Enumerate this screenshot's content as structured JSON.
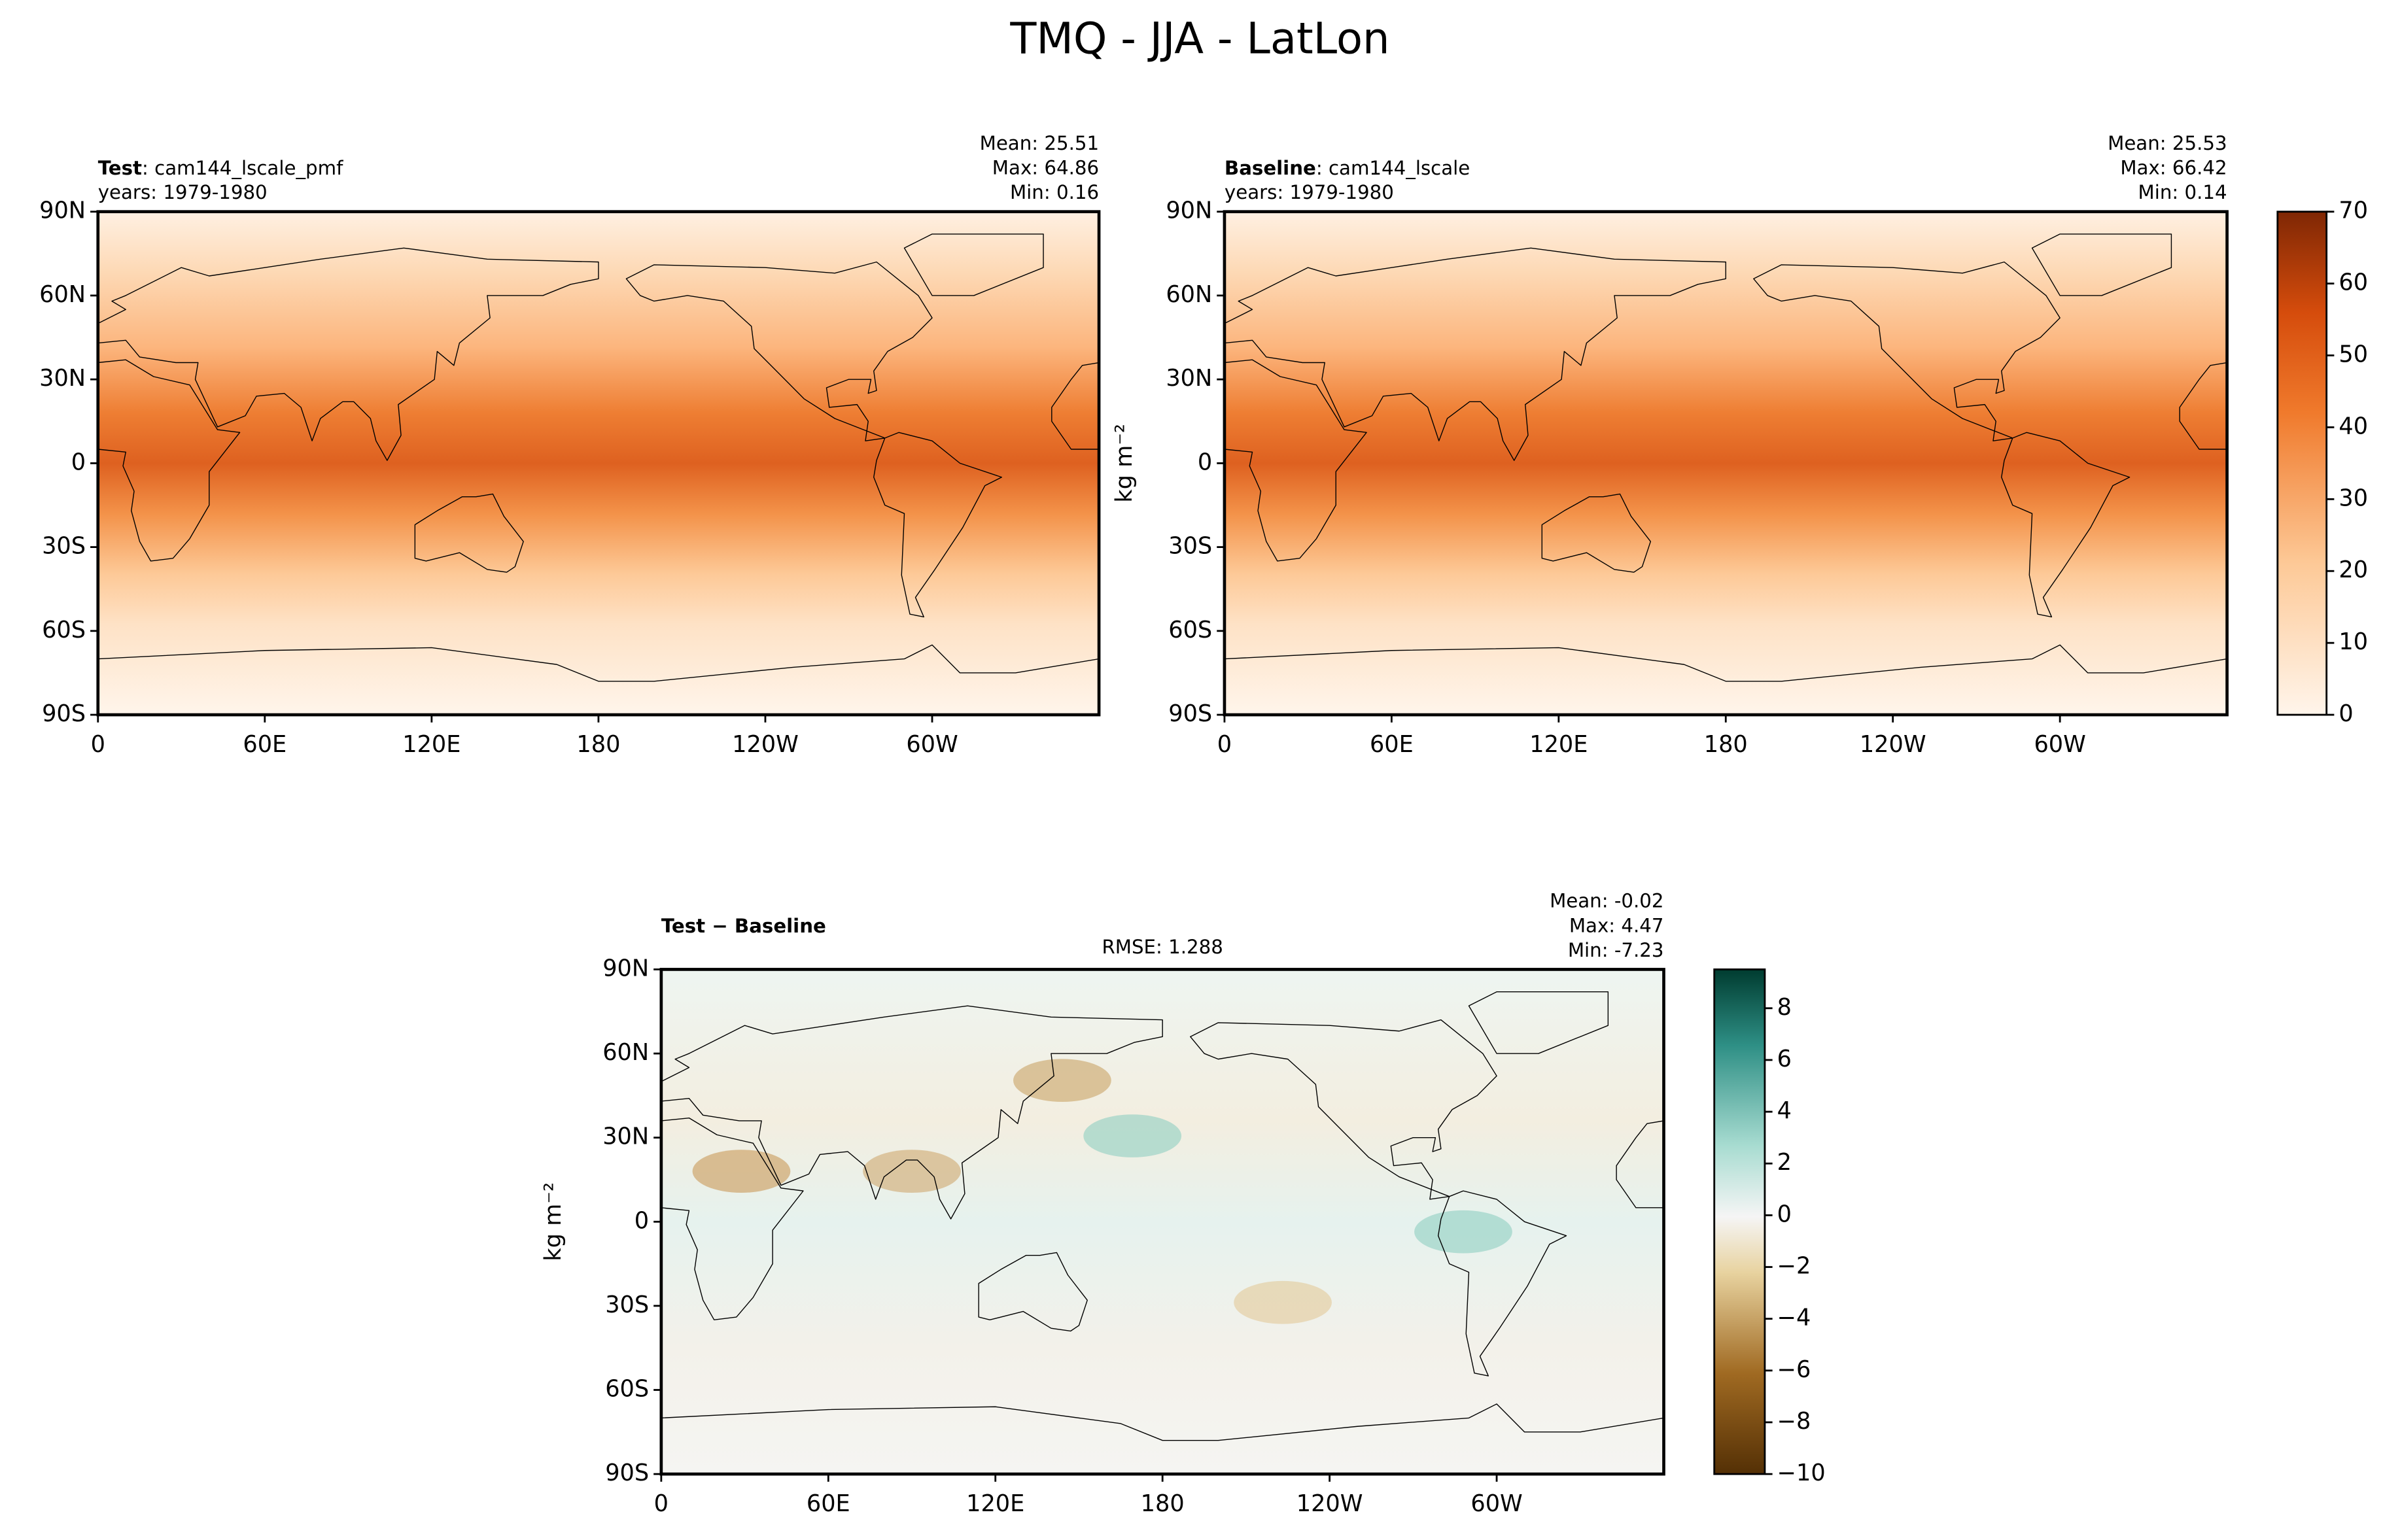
{
  "title": "TMQ - JJA - LatLon",
  "chart_data": [
    {
      "type": "map",
      "label": "Test",
      "run": ": cam144_lscale_pmf",
      "years": "years: 1979-1980",
      "stats": [
        "Mean: 25.51",
        "Max: 64.86",
        "Min:  0.16"
      ],
      "palette": "orange",
      "xlim": [
        0,
        360
      ],
      "ylim": [
        -90,
        90
      ],
      "xticks": [
        0,
        {
          "value": 60,
          "label": "60E"
        },
        {
          "value": 120,
          "label": "120E"
        },
        180,
        {
          "value": 240,
          "label": "120W"
        },
        {
          "value": 300,
          "label": "60W"
        }
      ],
      "yticks": [
        {
          "value": 90,
          "label": "90N"
        },
        {
          "value": 60,
          "label": "60N"
        },
        {
          "value": 30,
          "label": "30N"
        },
        0,
        {
          "value": -30,
          "label": "30S"
        },
        {
          "value": -60,
          "label": "60S"
        },
        {
          "value": -90,
          "label": "90S"
        }
      ]
    },
    {
      "type": "map",
      "label": "Baseline",
      "run": ": cam144_lscale",
      "years": "years: 1979-1980",
      "stats": [
        "Mean: 25.53",
        "Max: 66.42",
        "Min:  0.14"
      ],
      "palette": "orange",
      "units": "kg m⁻²",
      "xlim": [
        0,
        360
      ],
      "ylim": [
        -90,
        90
      ],
      "xticks": [
        0,
        {
          "value": 60,
          "label": "60E"
        },
        {
          "value": 120,
          "label": "120E"
        },
        180,
        {
          "value": 240,
          "label": "120W"
        },
        {
          "value": 300,
          "label": "60W"
        }
      ],
      "yticks": [
        {
          "value": 90,
          "label": "90N"
        },
        {
          "value": 60,
          "label": "60N"
        },
        {
          "value": 30,
          "label": "30N"
        },
        0,
        {
          "value": -30,
          "label": "30S"
        },
        {
          "value": -60,
          "label": "60S"
        },
        {
          "value": -90,
          "label": "90S"
        }
      ],
      "colorbar": {
        "lim": [
          0,
          70
        ],
        "ticks": [
          0,
          10,
          20,
          30,
          40,
          50,
          60,
          70
        ]
      }
    },
    {
      "type": "map",
      "label": "Test − Baseline",
      "rmse": "RMSE: 1.288",
      "stats": [
        "Mean: -0.02",
        "Max:  4.47",
        "Min: -7.23"
      ],
      "palette": "diff",
      "units": "kg m⁻²",
      "xlim": [
        0,
        360
      ],
      "ylim": [
        -90,
        90
      ],
      "xticks": [
        0,
        {
          "value": 60,
          "label": "60E"
        },
        {
          "value": 120,
          "label": "120E"
        },
        180,
        {
          "value": 240,
          "label": "120W"
        },
        {
          "value": 300,
          "label": "60W"
        }
      ],
      "yticks": [
        {
          "value": 90,
          "label": "90N"
        },
        {
          "value": 60,
          "label": "60N"
        },
        {
          "value": 30,
          "label": "30N"
        },
        0,
        {
          "value": -30,
          "label": "30S"
        },
        {
          "value": -60,
          "label": "60S"
        },
        {
          "value": -90,
          "label": "90S"
        }
      ],
      "colorbar": {
        "lim": [
          -10,
          9.5
        ],
        "ticks": [
          {
            "value": -10,
            "label": "−10"
          },
          {
            "value": -8,
            "label": "−8"
          },
          {
            "value": -6,
            "label": "−6"
          },
          {
            "value": -4,
            "label": "−4"
          },
          {
            "value": -2,
            "label": "−2"
          },
          0,
          2,
          4,
          6,
          8
        ]
      }
    }
  ]
}
